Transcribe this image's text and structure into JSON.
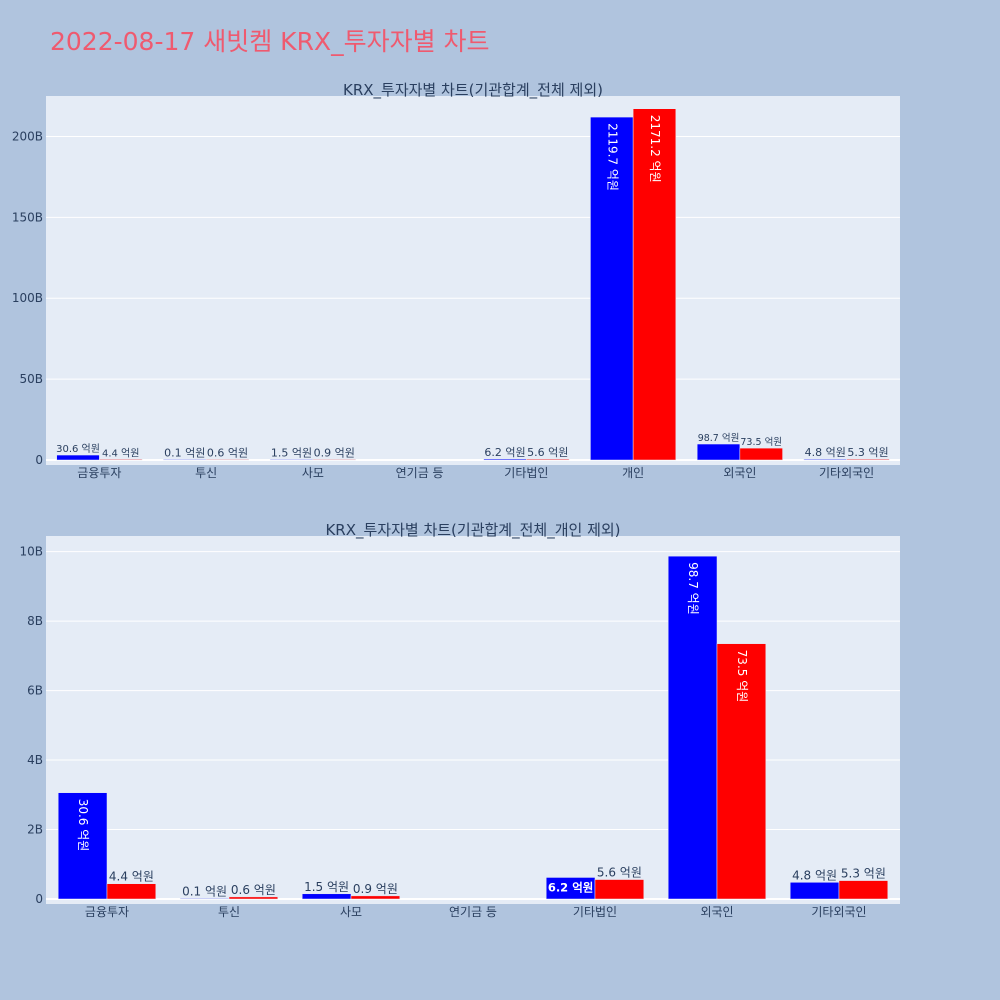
{
  "page": {
    "title": "2022-08-17 새빗켐 KRX_투자자별 차트"
  },
  "colors": {
    "page_bg": "#b0c4de",
    "plot_bg": "#e5ecf6",
    "title": "#ef5a6f",
    "series_a": "#0000ff",
    "series_b": "#ff0000",
    "text": "#2a3f5f"
  },
  "chart_data": [
    {
      "type": "bar",
      "title": "KRX_투자자별 차트(기관합계_전체 제외)",
      "categories": [
        "금융투자",
        "투신",
        "사모",
        "연기금 등",
        "기타법인",
        "개인",
        "외국인",
        "기타외국인"
      ],
      "series": [
        {
          "color": "#0000ff",
          "values": [
            3060000000,
            10000000,
            150000000,
            0,
            620000000,
            211970000000,
            9870000000,
            480000000
          ],
          "labels": [
            "30.6 억원",
            "0.1 억원",
            "1.5 억원",
            "",
            "6.2 억원",
            "2119.7 억원",
            "98.7 억원",
            "4.8 억원"
          ]
        },
        {
          "color": "#ff0000",
          "values": [
            440000000,
            60000000,
            90000000,
            0,
            560000000,
            217120000000,
            7350000000,
            530000000
          ],
          "labels": [
            "4.4 억원",
            "0.6 억원",
            "0.9 억원",
            "",
            "5.6 억원",
            "2171.2 억원",
            "73.5 억원",
            "5.3 억원"
          ]
        }
      ],
      "yticks": [
        0,
        50000000000,
        100000000000,
        150000000000,
        200000000000
      ],
      "ytick_labels": [
        "0",
        "50B",
        "100B",
        "150B",
        "200B"
      ],
      "ylim": [
        0,
        225000000000
      ],
      "grid": true,
      "legend": "none"
    },
    {
      "type": "bar",
      "title": "KRX_투자자별 차트(기관합계_전체_개인 제외)",
      "categories": [
        "금융투자",
        "투신",
        "사모",
        "연기금 등",
        "기타법인",
        "외국인",
        "기타외국인"
      ],
      "series": [
        {
          "color": "#0000ff",
          "values": [
            3060000000,
            10000000,
            150000000,
            0,
            620000000,
            9870000000,
            480000000
          ],
          "labels": [
            "30.6 억원",
            "0.1 억원",
            "1.5 억원",
            "",
            "6.2 억원",
            "98.7 억원",
            "4.8 억원"
          ]
        },
        {
          "color": "#ff0000",
          "values": [
            440000000,
            60000000,
            90000000,
            0,
            560000000,
            7350000000,
            530000000
          ],
          "labels": [
            "4.4 억원",
            "0.6 억원",
            "0.9 억원",
            "",
            "5.6 억원",
            "73.5 억원",
            "5.3 억원"
          ]
        }
      ],
      "yticks": [
        0,
        2000000000,
        4000000000,
        6000000000,
        8000000000,
        10000000000
      ],
      "ytick_labels": [
        "0",
        "2B",
        "4B",
        "6B",
        "8B",
        "10B"
      ],
      "ylim": [
        0,
        10450000000
      ],
      "grid": true,
      "legend": "none"
    }
  ]
}
